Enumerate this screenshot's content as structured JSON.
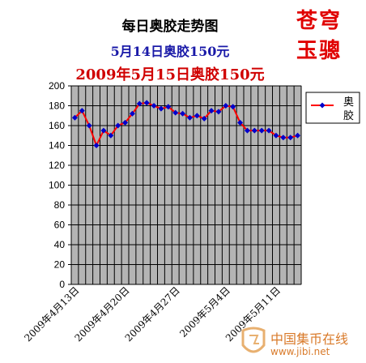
{
  "chart_data": {
    "type": "line",
    "title": "每日奥胶走势图",
    "subtitles": [
      "5月14日奥胶150元",
      "2009年5月15日奥胶150元"
    ],
    "legend": {
      "label": "奥胶",
      "placement": "right"
    },
    "ylim": [
      0,
      200
    ],
    "y_ticks": [
      0,
      20,
      40,
      60,
      80,
      100,
      120,
      140,
      160,
      180,
      200
    ],
    "x_tick_labels": [
      "2009年4月13日",
      "2009年4月20日",
      "2009年4月27日",
      "2009年5月4日",
      "2009年5月11日"
    ],
    "x_tick_indices": [
      0,
      7,
      14,
      21,
      28
    ],
    "grid": true,
    "series": [
      {
        "name": "奥胶",
        "color": "#ff0000",
        "marker_color": "#0000cc",
        "values": [
          168,
          175,
          160,
          140,
          155,
          150,
          160,
          163,
          172,
          182,
          183,
          180,
          177,
          179,
          173,
          172,
          168,
          170,
          167,
          175,
          174,
          180,
          179,
          163,
          155,
          155,
          155,
          155,
          150,
          148,
          148,
          150
        ]
      }
    ]
  },
  "stamp": {
    "line1": "苍穹",
    "line2": "玉骢"
  },
  "watermark": {
    "site": "中国集币在线",
    "url": "www.jibi.net"
  }
}
